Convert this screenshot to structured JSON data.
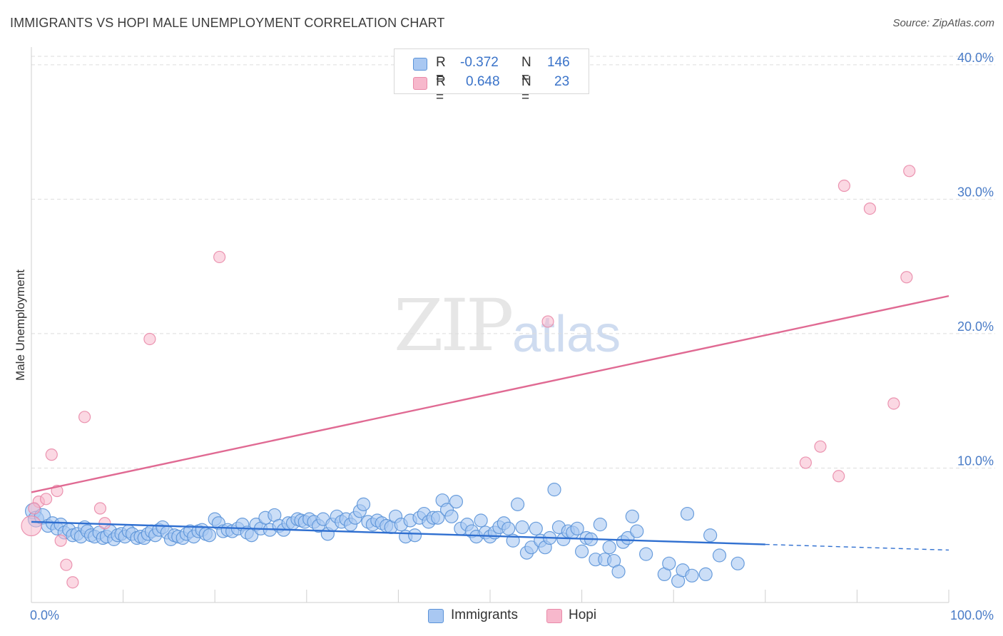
{
  "header": {
    "title": "IMMIGRANTS VS HOPI MALE UNEMPLOYMENT CORRELATION CHART",
    "source": "Source: ZipAtlas.com"
  },
  "watermark": {
    "zip": "ZIP",
    "atlas": "atlas"
  },
  "legend": {
    "rows": [
      {
        "r_key": "R =",
        "r_value": "-0.372",
        "n_key": "N =",
        "n_value": "146",
        "color": "#a9c8f2"
      },
      {
        "r_key": "R =",
        "r_value": "0.648",
        "n_key": "N =",
        "n_value": "23",
        "color": "#f7b8cc"
      }
    ]
  },
  "bottom_legend": {
    "immigrants": "Immigrants",
    "hopi": "Hopi"
  },
  "colors": {
    "immigrants_fill": "#a9c8f2",
    "immigrants_stroke": "#5b93d8",
    "immigrants_line": "#2f6fd0",
    "hopi_fill": "#f7b8cc",
    "hopi_stroke": "#e98aa9",
    "hopi_line": "#e06a93",
    "grid": "#dddddd",
    "tick_text": "#4a7cc7"
  },
  "chart_data": {
    "type": "scatter",
    "title": "IMMIGRANTS VS HOPI MALE UNEMPLOYMENT CORRELATION CHART",
    "xlabel": "",
    "ylabel": "Male Unemployment",
    "xlim": [
      0,
      100
    ],
    "ylim": [
      0,
      41
    ],
    "x_tick_labels": [
      "0.0%",
      "100.0%"
    ],
    "y_ticks": [
      10,
      20,
      30,
      40
    ],
    "y_tick_labels": [
      "10.0%",
      "20.0%",
      "30.0%",
      "40.0%"
    ],
    "series": [
      {
        "name": "Immigrants",
        "points": [
          [
            0.2,
            6.8
          ],
          [
            0.5,
            6.2
          ],
          [
            1.2,
            6.4
          ],
          [
            1.8,
            5.7
          ],
          [
            2.3,
            5.9
          ],
          [
            2.8,
            5.5
          ],
          [
            3.2,
            5.8
          ],
          [
            3.6,
            5.2
          ],
          [
            4.1,
            5.4
          ],
          [
            4.5,
            5.0
          ],
          [
            5.0,
            5.1
          ],
          [
            5.4,
            4.9
          ],
          [
            5.8,
            5.6
          ],
          [
            6.1,
            5.3
          ],
          [
            6.5,
            5.0
          ],
          [
            6.9,
            4.9
          ],
          [
            7.4,
            5.2
          ],
          [
            7.8,
            4.8
          ],
          [
            8.2,
            4.9
          ],
          [
            8.6,
            5.3
          ],
          [
            9.0,
            4.7
          ],
          [
            9.4,
            5.0
          ],
          [
            9.8,
            5.1
          ],
          [
            10.2,
            4.9
          ],
          [
            10.6,
            5.3
          ],
          [
            11.0,
            5.1
          ],
          [
            11.5,
            4.8
          ],
          [
            11.9,
            4.9
          ],
          [
            12.3,
            4.8
          ],
          [
            12.7,
            5.1
          ],
          [
            13.1,
            5.3
          ],
          [
            13.5,
            5.0
          ],
          [
            13.9,
            5.4
          ],
          [
            14.3,
            5.6
          ],
          [
            14.8,
            5.2
          ],
          [
            15.2,
            4.7
          ],
          [
            15.6,
            5.0
          ],
          [
            16.0,
            4.9
          ],
          [
            16.5,
            4.8
          ],
          [
            16.9,
            5.1
          ],
          [
            17.3,
            5.3
          ],
          [
            17.7,
            4.9
          ],
          [
            18.2,
            5.3
          ],
          [
            18.6,
            5.4
          ],
          [
            19.0,
            5.1
          ],
          [
            19.4,
            5.0
          ],
          [
            20.0,
            6.2
          ],
          [
            20.4,
            5.9
          ],
          [
            20.9,
            5.3
          ],
          [
            21.4,
            5.4
          ],
          [
            21.9,
            5.3
          ],
          [
            22.5,
            5.5
          ],
          [
            23.0,
            5.8
          ],
          [
            23.5,
            5.2
          ],
          [
            24.0,
            5.0
          ],
          [
            24.5,
            5.8
          ],
          [
            25.0,
            5.5
          ],
          [
            25.5,
            6.3
          ],
          [
            26.0,
            5.4
          ],
          [
            26.5,
            6.5
          ],
          [
            27.0,
            5.7
          ],
          [
            27.5,
            5.4
          ],
          [
            28.0,
            5.9
          ],
          [
            28.5,
            5.9
          ],
          [
            29.0,
            6.2
          ],
          [
            29.4,
            6.1
          ],
          [
            29.8,
            6.0
          ],
          [
            30.3,
            6.2
          ],
          [
            30.8,
            6.0
          ],
          [
            31.3,
            5.7
          ],
          [
            31.8,
            6.2
          ],
          [
            32.3,
            5.1
          ],
          [
            32.8,
            5.8
          ],
          [
            33.3,
            6.4
          ],
          [
            33.8,
            6.0
          ],
          [
            34.3,
            6.2
          ],
          [
            34.8,
            5.8
          ],
          [
            35.3,
            6.3
          ],
          [
            35.8,
            6.8
          ],
          [
            36.2,
            7.3
          ],
          [
            36.7,
            6.0
          ],
          [
            37.2,
            5.8
          ],
          [
            37.7,
            6.1
          ],
          [
            38.2,
            5.9
          ],
          [
            38.7,
            5.7
          ],
          [
            39.2,
            5.6
          ],
          [
            39.7,
            6.4
          ],
          [
            40.3,
            5.8
          ],
          [
            40.8,
            4.9
          ],
          [
            41.3,
            6.1
          ],
          [
            41.8,
            5.0
          ],
          [
            42.3,
            6.3
          ],
          [
            42.8,
            6.6
          ],
          [
            43.3,
            6.0
          ],
          [
            43.8,
            6.3
          ],
          [
            44.3,
            6.3
          ],
          [
            44.8,
            7.6
          ],
          [
            45.3,
            6.9
          ],
          [
            45.8,
            6.4
          ],
          [
            46.3,
            7.5
          ],
          [
            46.8,
            5.5
          ],
          [
            47.5,
            5.8
          ],
          [
            48.0,
            5.3
          ],
          [
            48.5,
            4.9
          ],
          [
            49.0,
            6.1
          ],
          [
            49.5,
            5.2
          ],
          [
            50.0,
            4.9
          ],
          [
            50.5,
            5.2
          ],
          [
            51.0,
            5.6
          ],
          [
            51.5,
            5.9
          ],
          [
            52.0,
            5.5
          ],
          [
            52.5,
            4.6
          ],
          [
            53.0,
            7.3
          ],
          [
            53.5,
            5.6
          ],
          [
            54.0,
            3.7
          ],
          [
            54.5,
            4.1
          ],
          [
            55.0,
            5.5
          ],
          [
            55.5,
            4.6
          ],
          [
            56.0,
            4.1
          ],
          [
            56.5,
            4.8
          ],
          [
            57.0,
            8.4
          ],
          [
            57.5,
            5.6
          ],
          [
            58.0,
            4.7
          ],
          [
            58.5,
            5.3
          ],
          [
            59.0,
            5.2
          ],
          [
            59.5,
            5.5
          ],
          [
            60.0,
            3.8
          ],
          [
            60.5,
            4.8
          ],
          [
            61.0,
            4.7
          ],
          [
            61.5,
            3.2
          ],
          [
            62.0,
            5.8
          ],
          [
            62.5,
            3.2
          ],
          [
            63.0,
            4.1
          ],
          [
            63.5,
            3.1
          ],
          [
            64.0,
            2.3
          ],
          [
            64.5,
            4.5
          ],
          [
            65.0,
            4.8
          ],
          [
            65.5,
            6.4
          ],
          [
            66.0,
            5.3
          ],
          [
            67.0,
            3.6
          ],
          [
            69.0,
            2.1
          ],
          [
            69.5,
            2.9
          ],
          [
            70.5,
            1.6
          ],
          [
            71.0,
            2.4
          ],
          [
            71.5,
            6.6
          ],
          [
            72.0,
            2.0
          ],
          [
            73.5,
            2.1
          ],
          [
            74.0,
            5.0
          ],
          [
            75.0,
            3.5
          ],
          [
            77.0,
            2.9
          ]
        ]
      },
      {
        "name": "Hopi",
        "points": [
          [
            0.0,
            5.7
          ],
          [
            0.8,
            7.5
          ],
          [
            1.6,
            7.7
          ],
          [
            2.2,
            11.0
          ],
          [
            2.8,
            8.3
          ],
          [
            3.2,
            4.6
          ],
          [
            3.8,
            2.8
          ],
          [
            4.5,
            1.5
          ],
          [
            5.8,
            13.8
          ],
          [
            7.5,
            7.0
          ],
          [
            8.0,
            5.9
          ],
          [
            12.9,
            19.6
          ],
          [
            20.5,
            25.7
          ],
          [
            56.3,
            20.9
          ],
          [
            84.4,
            10.4
          ],
          [
            86.0,
            11.6
          ],
          [
            88.0,
            9.4
          ],
          [
            88.6,
            31.0
          ],
          [
            91.4,
            29.3
          ],
          [
            94.0,
            14.8
          ],
          [
            95.4,
            24.2
          ],
          [
            95.7,
            32.1
          ],
          [
            0.3,
            7.0
          ]
        ]
      }
    ],
    "trendlines": [
      {
        "series": "Immigrants",
        "solid_x": [
          0,
          80
        ],
        "dashed_x": [
          80,
          100
        ],
        "y_at_0": 6.0,
        "y_at_100": 3.9
      },
      {
        "series": "Hopi",
        "solid_x": [
          0,
          100
        ],
        "y_at_0": 8.2,
        "y_at_100": 22.8
      }
    ]
  }
}
